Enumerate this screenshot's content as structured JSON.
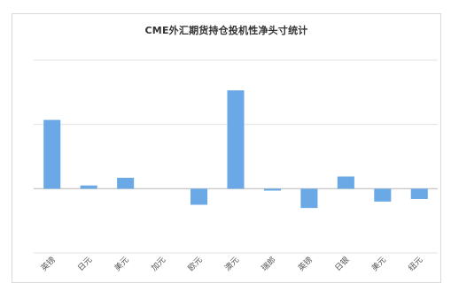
{
  "chart_data": {
    "type": "bar",
    "title": "CME外汇期货持仓投机性净头寸统计",
    "categories": [
      "英镑",
      "日元",
      "美元",
      "加元",
      "欧元",
      "澳元",
      "瑞郎",
      "英镑",
      "日银",
      "美元",
      "纽元"
    ],
    "values": [
      107,
      5,
      17,
      0,
      -25,
      153,
      -3,
      -30,
      19,
      -20,
      -16
    ],
    "ylim": [
      -100,
      200
    ],
    "gridlines": [
      -100,
      0,
      100,
      200
    ],
    "grid": true,
    "legend": "none",
    "bar_color": "#6aa9e6",
    "grid_color": "#e3e3e3",
    "axis_color": "#bfbfbf"
  }
}
